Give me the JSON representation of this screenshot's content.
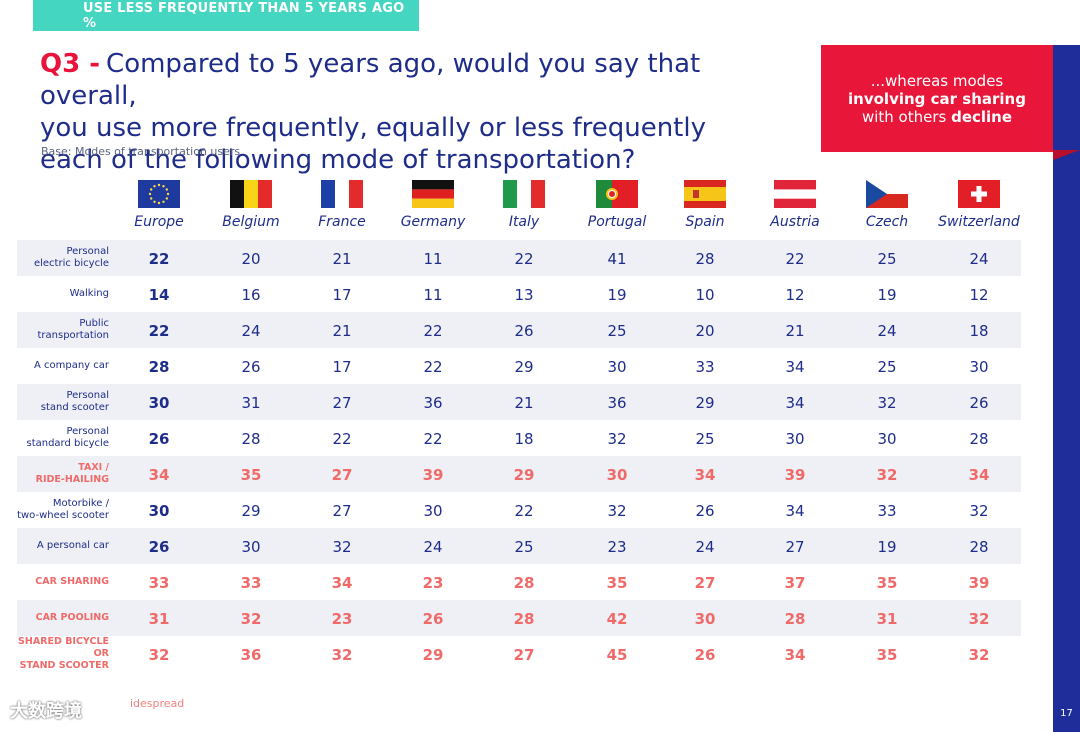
{
  "banner": "USE LESS FREQUENTLY THAN 5 YEARS AGO %",
  "question": {
    "number": "Q3 -",
    "line1": "Compared to 5 years ago, would you say that overall,",
    "line2": "you use more frequently, equally or less frequently",
    "line3": "each of the following mode of transportation?"
  },
  "base": "Base: Modes of transportation users",
  "callout": {
    "line1": "...whereas modes",
    "line2": "involving car sharing",
    "line3_pre": "with others ",
    "line3_strong": "decline"
  },
  "page_number": "17",
  "footer_note": "idespread",
  "watermark": "大数跨境",
  "countries": [
    {
      "name": "Europe",
      "flag": "eu-flag-icon"
    },
    {
      "name": "Belgium",
      "flag": "belgium-flag-icon"
    },
    {
      "name": "France",
      "flag": "france-flag-icon"
    },
    {
      "name": "Germany",
      "flag": "germany-flag-icon"
    },
    {
      "name": "Italy",
      "flag": "italy-flag-icon"
    },
    {
      "name": "Portugal",
      "flag": "portugal-flag-icon"
    },
    {
      "name": "Spain",
      "flag": "spain-flag-icon"
    },
    {
      "name": "Austria",
      "flag": "austria-flag-icon"
    },
    {
      "name": "Czech",
      "flag": "czech-flag-icon"
    },
    {
      "name": "Switzerland",
      "flag": "switzerland-flag-icon"
    }
  ],
  "colors": {
    "navy": "#1f2d8a",
    "highlight": "#f06a6a",
    "banner": "#45d6c1",
    "callout": "#e8173a"
  },
  "rows": [
    {
      "label": [
        "Personal",
        "electric bicycle"
      ],
      "highlight": false,
      "values": [
        "22",
        "20",
        "21",
        "11",
        "22",
        "41",
        "28",
        "22",
        "25",
        "24"
      ]
    },
    {
      "label": [
        "Walking"
      ],
      "highlight": false,
      "values": [
        "14",
        "16",
        "17",
        "11",
        "13",
        "19",
        "10",
        "12",
        "19",
        "12"
      ]
    },
    {
      "label": [
        "Public",
        "transportation"
      ],
      "highlight": false,
      "values": [
        "22",
        "24",
        "21",
        "22",
        "26",
        "25",
        "20",
        "21",
        "24",
        "18"
      ]
    },
    {
      "label": [
        "A company car"
      ],
      "highlight": false,
      "values": [
        "28",
        "26",
        "17",
        "22",
        "29",
        "30",
        "33",
        "34",
        "25",
        "30"
      ]
    },
    {
      "label": [
        "Personal",
        "stand scooter"
      ],
      "highlight": false,
      "values": [
        "30",
        "31",
        "27",
        "36",
        "21",
        "36",
        "29",
        "34",
        "32",
        "26"
      ]
    },
    {
      "label": [
        "Personal",
        "standard bicycle"
      ],
      "highlight": false,
      "values": [
        "26",
        "28",
        "22",
        "22",
        "18",
        "32",
        "25",
        "30",
        "30",
        "28"
      ]
    },
    {
      "label": [
        "TAXI /",
        "RIDE-HAILING"
      ],
      "highlight": true,
      "values": [
        "34",
        "35",
        "27",
        "39",
        "29",
        "30",
        "34",
        "39",
        "32",
        "34"
      ]
    },
    {
      "label": [
        "Motorbike /",
        "two-wheel scooter"
      ],
      "highlight": false,
      "values": [
        "30",
        "29",
        "27",
        "30",
        "22",
        "32",
        "26",
        "34",
        "33",
        "32"
      ]
    },
    {
      "label": [
        "A personal car"
      ],
      "highlight": false,
      "values": [
        "26",
        "30",
        "32",
        "24",
        "25",
        "23",
        "24",
        "27",
        "19",
        "28"
      ]
    },
    {
      "label": [
        "CAR SHARING"
      ],
      "highlight": true,
      "values": [
        "33",
        "33",
        "34",
        "23",
        "28",
        "35",
        "27",
        "37",
        "35",
        "39"
      ]
    },
    {
      "label": [
        "CAR POOLING"
      ],
      "highlight": true,
      "values": [
        "31",
        "32",
        "23",
        "26",
        "28",
        "42",
        "30",
        "28",
        "31",
        "32"
      ]
    },
    {
      "label": [
        "SHARED BICYCLE OR",
        "STAND SCOOTER"
      ],
      "highlight": true,
      "values": [
        "32",
        "36",
        "32",
        "29",
        "27",
        "45",
        "26",
        "34",
        "35",
        "32"
      ]
    }
  ]
}
